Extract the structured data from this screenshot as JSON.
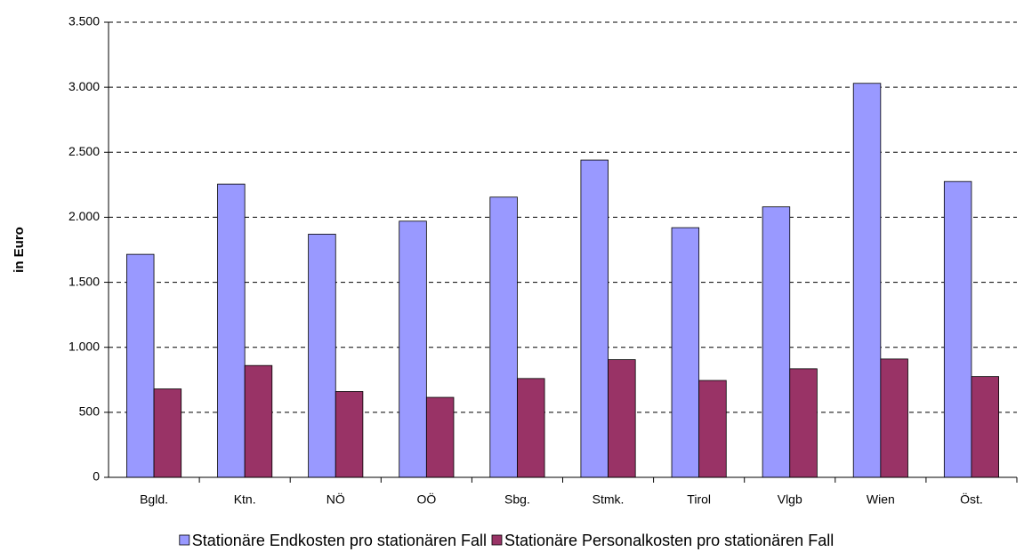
{
  "chart_data": {
    "type": "bar",
    "y_label": "in Euro",
    "categories": [
      "Bgld.",
      "Ktn.",
      "NÖ",
      "OÖ",
      "Sbg.",
      "Stmk.",
      "Tirol",
      "Vlgb",
      "Wien",
      "Öst."
    ],
    "series": [
      {
        "name": "Stationäre Endkosten pro stationären Fall",
        "color": "#9999ff",
        "values": [
          1715,
          2255,
          1870,
          1970,
          2155,
          2440,
          1920,
          2080,
          3030,
          2275
        ]
      },
      {
        "name": "Stationäre Personalkosten pro stationären Fall",
        "color": "#993366",
        "values": [
          680,
          860,
          660,
          615,
          760,
          905,
          745,
          835,
          910,
          775
        ]
      }
    ],
    "ylim": [
      0,
      3500
    ],
    "yticks": [
      0,
      500,
      {
        "value": 1000,
        "label": "1.000"
      },
      {
        "value": 1500,
        "label": "1.500"
      },
      {
        "value": 2000,
        "label": "2.000"
      },
      {
        "value": 2500,
        "label": "2.500"
      },
      {
        "value": 3000,
        "label": "3.000"
      },
      {
        "value": 3500,
        "label": "3.500"
      }
    ],
    "grid": true,
    "legend": "bottom"
  }
}
